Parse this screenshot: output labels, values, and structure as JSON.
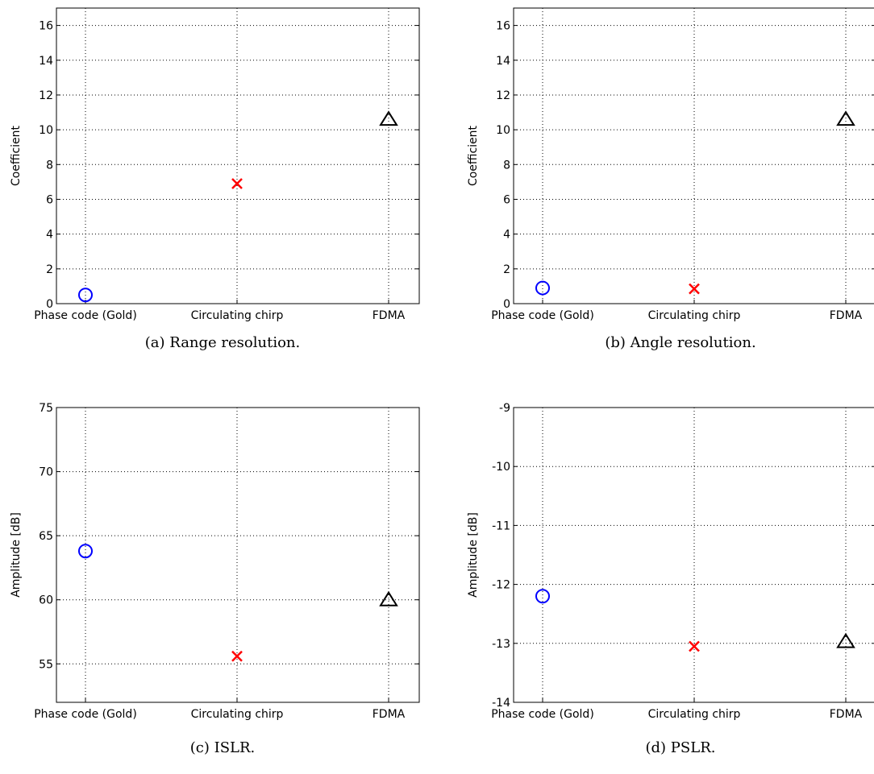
{
  "chart_data": [
    {
      "type": "scatter",
      "caption": "(a) Range resolution.",
      "ylabel": "Coefficient",
      "categories": [
        "Phase code (Gold)",
        "Circulating chirp",
        "FDMA"
      ],
      "values": [
        0.5,
        6.9,
        10.6
      ],
      "ylim": [
        0,
        17
      ],
      "yticks": [
        0,
        2,
        4,
        6,
        8,
        10,
        12,
        14,
        16
      ],
      "markers": [
        {
          "shape": "circle",
          "color": "#0000ff"
        },
        {
          "shape": "x",
          "color": "#ff0000"
        },
        {
          "shape": "triangle",
          "color": "#000000"
        }
      ],
      "grid": true
    },
    {
      "type": "scatter",
      "caption": "(b) Angle resolution.",
      "ylabel": "Coefficient",
      "categories": [
        "Phase code (Gold)",
        "Circulating chirp",
        "FDMA"
      ],
      "values": [
        0.9,
        0.85,
        10.6
      ],
      "ylim": [
        0,
        17
      ],
      "yticks": [
        0,
        2,
        4,
        6,
        8,
        10,
        12,
        14,
        16
      ],
      "markers": [
        {
          "shape": "circle",
          "color": "#0000ff"
        },
        {
          "shape": "x",
          "color": "#ff0000"
        },
        {
          "shape": "triangle",
          "color": "#000000"
        }
      ],
      "grid": true
    },
    {
      "type": "scatter",
      "caption": "(c) ISLR.",
      "ylabel": "Amplitude [dB]",
      "categories": [
        "Phase code (Gold)",
        "Circulating chirp",
        "FDMA"
      ],
      "values": [
        63.8,
        55.6,
        60.0
      ],
      "ylim": [
        52,
        75
      ],
      "yticks": [
        55,
        60,
        65,
        70,
        75
      ],
      "markers": [
        {
          "shape": "circle",
          "color": "#0000ff"
        },
        {
          "shape": "x",
          "color": "#ff0000"
        },
        {
          "shape": "triangle",
          "color": "#000000"
        }
      ],
      "grid": true
    },
    {
      "type": "scatter",
      "caption": "(d) PSLR.",
      "ylabel": "Amplitude [dB]",
      "categories": [
        "Phase code (Gold)",
        "Circulating chirp",
        "FDMA"
      ],
      "values": [
        -12.2,
        -13.05,
        -12.97
      ],
      "ylim": [
        -14,
        -9
      ],
      "yticks": [
        -14,
        -13,
        -12,
        -11,
        -10,
        -9
      ],
      "markers": [
        {
          "shape": "circle",
          "color": "#0000ff"
        },
        {
          "shape": "x",
          "color": "#ff0000"
        },
        {
          "shape": "triangle",
          "color": "#000000"
        }
      ],
      "grid": true
    }
  ]
}
